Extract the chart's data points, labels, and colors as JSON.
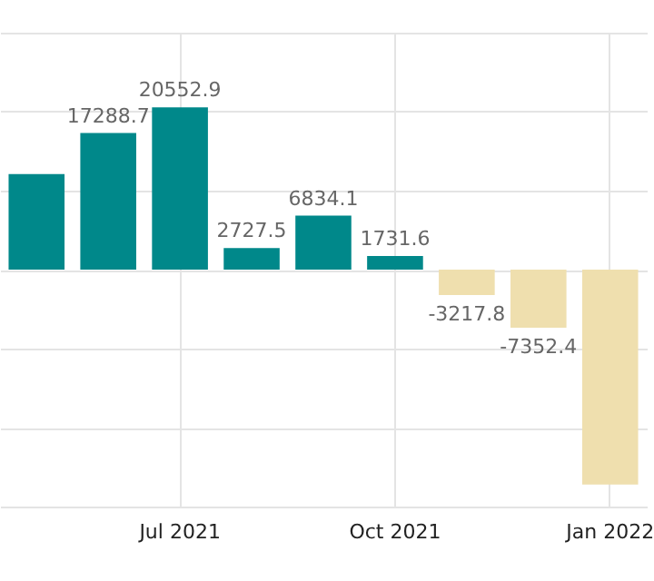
{
  "chart_data": {
    "type": "bar",
    "categories": [
      null,
      null,
      "Jul 2021",
      null,
      null,
      "Oct 2021",
      null,
      null,
      "Jan 2022"
    ],
    "values": [
      12100,
      17288.7,
      20552.9,
      2727.5,
      6834.1,
      1731.6,
      -3217.8,
      -7352.4,
      -27200
    ],
    "colors": [
      "#00888a",
      "#00888a",
      "#00888a",
      "#00888a",
      "#00888a",
      "#00888a",
      "#efdfae",
      "#efdfae",
      "#efdfae"
    ],
    "value_labels": [
      null,
      "17288.7",
      "20552.9",
      "2727.5",
      "6834.1",
      "1731.6",
      "-3217.8",
      "-7352.4",
      null
    ],
    "ylim": [
      -30000,
      30000
    ],
    "yticks": [
      {
        "value": -30000,
        "label": null
      },
      {
        "value": -20000,
        "label": null
      },
      {
        "value": -10000,
        "label": null
      },
      {
        "value": 0,
        "label": null
      },
      {
        "value": 10000,
        "label": null
      },
      {
        "value": 20000,
        "label": null
      },
      {
        "value": 30000,
        "label": null
      }
    ],
    "tick_labels": "x",
    "grid": true
  }
}
